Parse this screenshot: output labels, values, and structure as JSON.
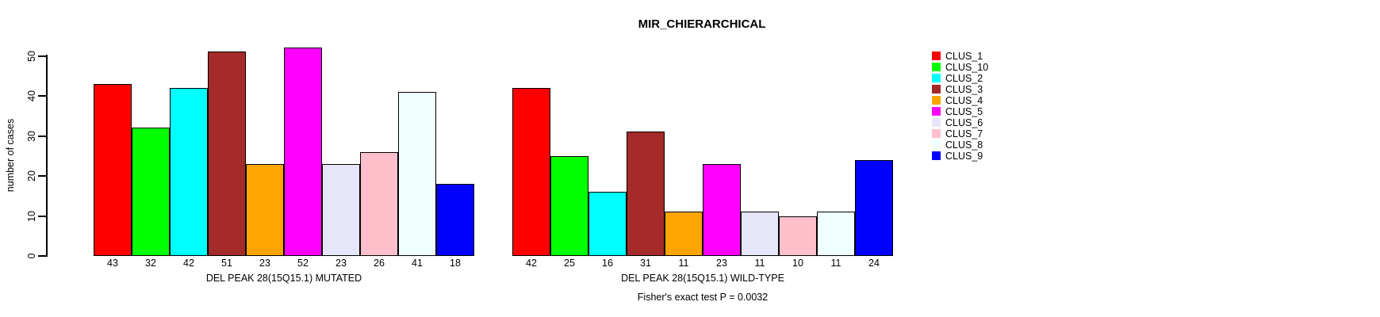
{
  "chart": {
    "title": "MIR_CHIERARCHICAL",
    "ylabel": "number of cases",
    "footer": "Fisher's exact test P = 0.0032"
  },
  "chart_data": {
    "type": "bar",
    "title": "MIR_CHIERARCHICAL",
    "xlabel": "",
    "ylabel": "number of cases",
    "ylim": [
      0,
      50
    ],
    "yticks": [
      0,
      10,
      20,
      30,
      40,
      50
    ],
    "grid": false,
    "legend_position": "right",
    "bar_value_labels": true,
    "categories": [
      "DEL PEAK 28(15Q15.1) MUTATED",
      "DEL PEAK 28(15Q15.1) WILD-TYPE"
    ],
    "series": [
      {
        "name": "CLUS_1",
        "color": "#FF0000",
        "values": [
          43,
          42
        ]
      },
      {
        "name": "CLUS_10",
        "color": "#00FF00",
        "values": [
          32,
          25
        ]
      },
      {
        "name": "CLUS_2",
        "color": "#00FFFF",
        "values": [
          42,
          16
        ]
      },
      {
        "name": "CLUS_3",
        "color": "#A52A2A",
        "values": [
          51,
          31
        ]
      },
      {
        "name": "CLUS_4",
        "color": "#FFA500",
        "values": [
          23,
          11
        ]
      },
      {
        "name": "CLUS_5",
        "color": "#FF00FF",
        "values": [
          52,
          23
        ]
      },
      {
        "name": "CLUS_6",
        "color": "#E6E6FA",
        "values": [
          23,
          11
        ]
      },
      {
        "name": "CLUS_7",
        "color": "#FFC0CB",
        "values": [
          26,
          10
        ]
      },
      {
        "name": "CLUS_8",
        "color": "#F0FFFF",
        "values": [
          41,
          11
        ]
      },
      {
        "name": "CLUS_9",
        "color": "#0000FF",
        "values": [
          18,
          24
        ]
      }
    ],
    "annotation": "Fisher's exact test P = 0.0032"
  }
}
